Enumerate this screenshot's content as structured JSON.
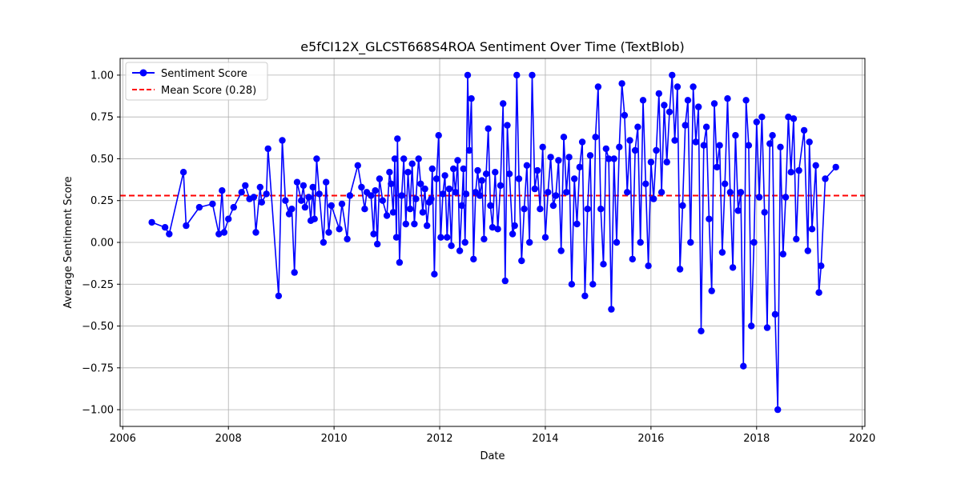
{
  "chart_data": {
    "type": "line",
    "title": "e5fCI12X_GLCST668S4ROA Sentiment Over Time (TextBlob)",
    "xlabel": "Date",
    "ylabel": "Average Sentiment Score",
    "xlim": [
      2005.95,
      2020.05
    ],
    "ylim": [
      -1.1,
      1.1
    ],
    "x_ticks": [
      2006,
      2008,
      2010,
      2012,
      2014,
      2016,
      2018,
      2020
    ],
    "y_ticks": [
      -1.0,
      -0.75,
      -0.5,
      -0.25,
      0.0,
      0.25,
      0.5,
      0.75,
      1.0
    ],
    "y_tick_labels": [
      "−1.00",
      "−0.75",
      "−0.50",
      "−0.25",
      "0.00",
      "0.25",
      "0.50",
      "0.75",
      "1.00"
    ],
    "grid": true,
    "legend_position": "top-left",
    "series": [
      {
        "name": "Sentiment Score",
        "color": "#0000ff",
        "marker": "circle",
        "x": [
          2006.55,
          2006.8,
          2006.88,
          2007.15,
          2007.2,
          2007.45,
          2007.7,
          2007.82,
          2007.88,
          2007.92,
          2008.0,
          2008.1,
          2008.25,
          2008.32,
          2008.4,
          2008.48,
          2008.52,
          2008.6,
          2008.63,
          2008.72,
          2008.75,
          2008.95,
          2009.02,
          2009.08,
          2009.15,
          2009.2,
          2009.25,
          2009.3,
          2009.38,
          2009.42,
          2009.45,
          2009.52,
          2009.56,
          2009.6,
          2009.63,
          2009.67,
          2009.72,
          2009.8,
          2009.85,
          2009.9,
          2009.95,
          2010.1,
          2010.15,
          2010.25,
          2010.3,
          2010.45,
          2010.52,
          2010.58,
          2010.62,
          2010.7,
          2010.75,
          2010.78,
          2010.82,
          2010.86,
          2010.92,
          2011.0,
          2011.05,
          2011.08,
          2011.12,
          2011.15,
          2011.18,
          2011.2,
          2011.24,
          2011.28,
          2011.32,
          2011.36,
          2011.4,
          2011.44,
          2011.48,
          2011.52,
          2011.55,
          2011.6,
          2011.64,
          2011.68,
          2011.72,
          2011.76,
          2011.8,
          2011.84,
          2011.86,
          2011.9,
          2011.94,
          2011.98,
          2012.02,
          2012.06,
          2012.1,
          2012.14,
          2012.18,
          2012.22,
          2012.26,
          2012.3,
          2012.34,
          2012.38,
          2012.42,
          2012.45,
          2012.48,
          2012.5,
          2012.53,
          2012.56,
          2012.6,
          2012.64,
          2012.68,
          2012.72,
          2012.76,
          2012.8,
          2012.84,
          2012.88,
          2012.92,
          2012.96,
          2013.0,
          2013.05,
          2013.1,
          2013.15,
          2013.2,
          2013.24,
          2013.28,
          2013.32,
          2013.38,
          2013.42,
          2013.46,
          2013.5,
          2013.55,
          2013.6,
          2013.65,
          2013.7,
          2013.75,
          2013.8,
          2013.85,
          2013.9,
          2013.95,
          2014.0,
          2014.05,
          2014.1,
          2014.15,
          2014.2,
          2014.25,
          2014.3,
          2014.35,
          2014.4,
          2014.45,
          2014.5,
          2014.55,
          2014.6,
          2014.65,
          2014.7,
          2014.75,
          2014.8,
          2014.85,
          2014.9,
          2014.95,
          2015.0,
          2015.05,
          2015.1,
          2015.15,
          2015.2,
          2015.25,
          2015.3,
          2015.35,
          2015.4,
          2015.45,
          2015.5,
          2015.55,
          2015.6,
          2015.65,
          2015.7,
          2015.75,
          2015.8,
          2015.85,
          2015.9,
          2015.95,
          2016.0,
          2016.05,
          2016.1,
          2016.15,
          2016.2,
          2016.25,
          2016.3,
          2016.35,
          2016.4,
          2016.45,
          2016.5,
          2016.55,
          2016.6,
          2016.65,
          2016.7,
          2016.75,
          2016.8,
          2016.85,
          2016.9,
          2016.95,
          2017.0,
          2017.05,
          2017.1,
          2017.15,
          2017.2,
          2017.25,
          2017.3,
          2017.35,
          2017.4,
          2017.45,
          2017.5,
          2017.55,
          2017.6,
          2017.65,
          2017.7,
          2017.75,
          2017.8,
          2017.85,
          2017.9,
          2017.95,
          2018.0,
          2018.05,
          2018.1,
          2018.15,
          2018.2,
          2018.25,
          2018.3,
          2018.35,
          2018.4,
          2018.45,
          2018.5,
          2018.55,
          2018.6,
          2018.65,
          2018.7,
          2018.75,
          2018.8,
          2018.9,
          2018.97,
          2019.0,
          2019.05,
          2019.12,
          2019.18,
          2019.22,
          2019.3,
          2019.5
        ],
        "y": [
          0.12,
          0.09,
          0.05,
          0.42,
          0.1,
          0.21,
          0.23,
          0.05,
          0.31,
          0.06,
          0.14,
          0.21,
          0.3,
          0.34,
          0.26,
          0.27,
          0.06,
          0.33,
          0.24,
          0.29,
          0.56,
          -0.32,
          0.61,
          0.25,
          0.17,
          0.2,
          -0.18,
          0.36,
          0.25,
          0.34,
          0.21,
          0.27,
          0.13,
          0.33,
          0.14,
          0.5,
          0.29,
          0.0,
          0.36,
          0.06,
          0.22,
          0.08,
          0.23,
          0.02,
          0.28,
          0.46,
          0.33,
          0.2,
          0.3,
          0.28,
          0.05,
          0.31,
          -0.01,
          0.38,
          0.25,
          0.16,
          0.42,
          0.35,
          0.18,
          0.5,
          0.03,
          0.62,
          -0.12,
          0.28,
          0.5,
          0.11,
          0.42,
          0.2,
          0.47,
          0.11,
          0.26,
          0.5,
          0.35,
          0.18,
          0.32,
          0.1,
          0.24,
          0.26,
          0.44,
          -0.19,
          0.38,
          0.64,
          0.03,
          0.29,
          0.4,
          0.03,
          0.32,
          -0.02,
          0.44,
          0.3,
          0.49,
          -0.05,
          0.22,
          0.44,
          0.0,
          0.29,
          1.0,
          0.55,
          0.86,
          -0.1,
          0.3,
          0.43,
          0.28,
          0.37,
          0.02,
          0.41,
          0.68,
          0.22,
          0.09,
          0.42,
          0.08,
          0.34,
          0.83,
          -0.23,
          0.7,
          0.41,
          0.05,
          0.1,
          1.0,
          0.38,
          -0.11,
          0.2,
          0.46,
          0.0,
          1.0,
          0.32,
          0.43,
          0.2,
          0.57,
          0.03,
          0.3,
          0.51,
          0.22,
          0.28,
          0.49,
          -0.05,
          0.63,
          0.3,
          0.51,
          -0.25,
          0.38,
          0.11,
          0.45,
          0.6,
          -0.32,
          0.2,
          0.52,
          -0.25,
          0.63,
          0.93,
          0.2,
          -0.13,
          0.56,
          0.5,
          -0.4,
          0.5,
          0.0,
          0.57,
          0.95,
          0.76,
          0.3,
          0.61,
          -0.1,
          0.55,
          0.69,
          0.0,
          0.85,
          0.35,
          -0.14,
          0.48,
          0.26,
          0.55,
          0.89,
          0.3,
          0.82,
          0.48,
          0.78,
          1.0,
          0.61,
          0.93,
          -0.16,
          0.22,
          0.7,
          0.85,
          0.0,
          0.93,
          0.6,
          0.81,
          -0.53,
          0.58,
          0.69,
          0.14,
          -0.29,
          0.83,
          0.45,
          0.58,
          -0.06,
          0.35,
          0.86,
          0.3,
          -0.15,
          0.64,
          0.19,
          0.3,
          -0.74,
          0.85,
          0.58,
          -0.5,
          0.0,
          0.72,
          0.27,
          0.75,
          0.18,
          -0.51,
          0.59,
          0.64,
          -0.43,
          -1.0,
          0.57,
          -0.07,
          0.27,
          0.75,
          0.42,
          0.74,
          0.02,
          0.43,
          0.67,
          -0.05,
          0.6,
          0.08,
          0.46,
          -0.3,
          -0.14,
          0.38,
          0.45
        ]
      }
    ],
    "mean_line": {
      "name": "Mean Score (0.28)",
      "value": 0.28,
      "color": "#ff0000",
      "style": "dashed"
    }
  }
}
